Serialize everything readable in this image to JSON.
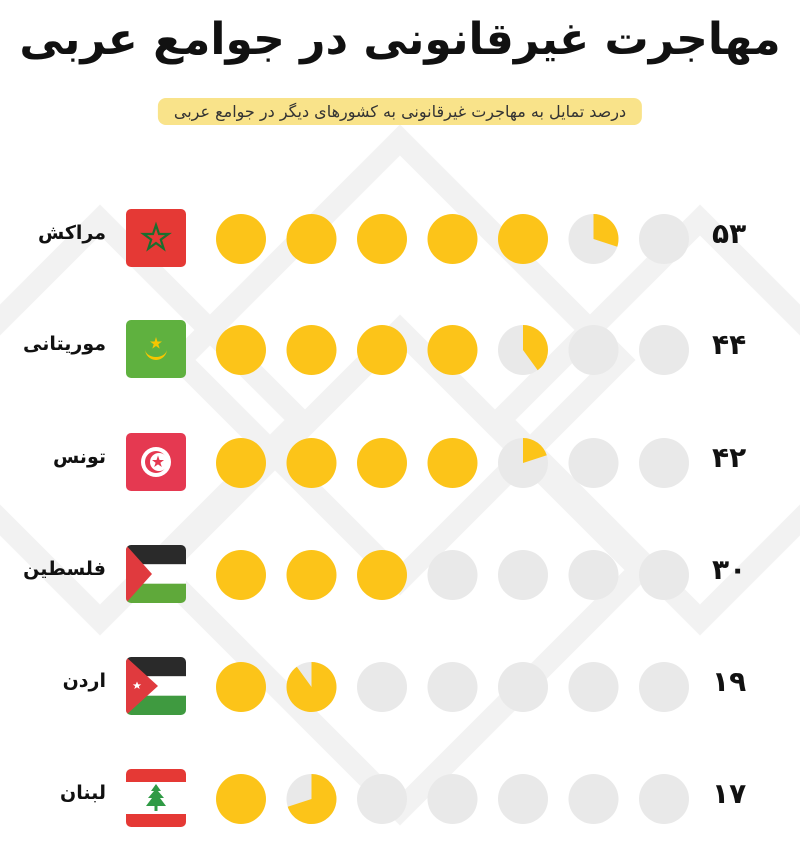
{
  "header": {
    "title": "مهاجرت غیرقانونی در جوامع عربی",
    "subtitle": "درصد تمایل به مهاجرت غیرقانونی به کشورهای دیگر در جوامع عربی"
  },
  "colors": {
    "fill": "#fcc419",
    "empty": "#e9e9e9",
    "highlight": "#f9e38a"
  },
  "rows": [
    {
      "country": "مراکش",
      "value_label": "۵۳",
      "flag_icon": "morocco-flag-icon"
    },
    {
      "country": "موریتانی",
      "value_label": "۴۴",
      "flag_icon": "mauritania-flag-icon"
    },
    {
      "country": "تونس",
      "value_label": "۴۲",
      "flag_icon": "tunisia-flag-icon"
    },
    {
      "country": "فلسطین",
      "value_label": "۳۰",
      "flag_icon": "palestine-flag-icon"
    },
    {
      "country": "اردن",
      "value_label": "۱۹",
      "flag_icon": "jordan-flag-icon"
    },
    {
      "country": "لبنان",
      "value_label": "۱۷",
      "flag_icon": "lebanon-flag-icon"
    }
  ],
  "chart_data": {
    "type": "bar",
    "categories": [
      "مراکش",
      "موریتانی",
      "تونس",
      "فلسطین",
      "اردن",
      "لبنان"
    ],
    "values": [
      53,
      44,
      42,
      30,
      19,
      17
    ],
    "units_per_circle": 10,
    "circles_per_row": 7,
    "title": "مهاجرت غیرقانونی در جوامع عربی",
    "subtitle": "درصد تمایل به مهاجرت غیرقانونی به کشورهای دیگر در جوامع عربی"
  }
}
